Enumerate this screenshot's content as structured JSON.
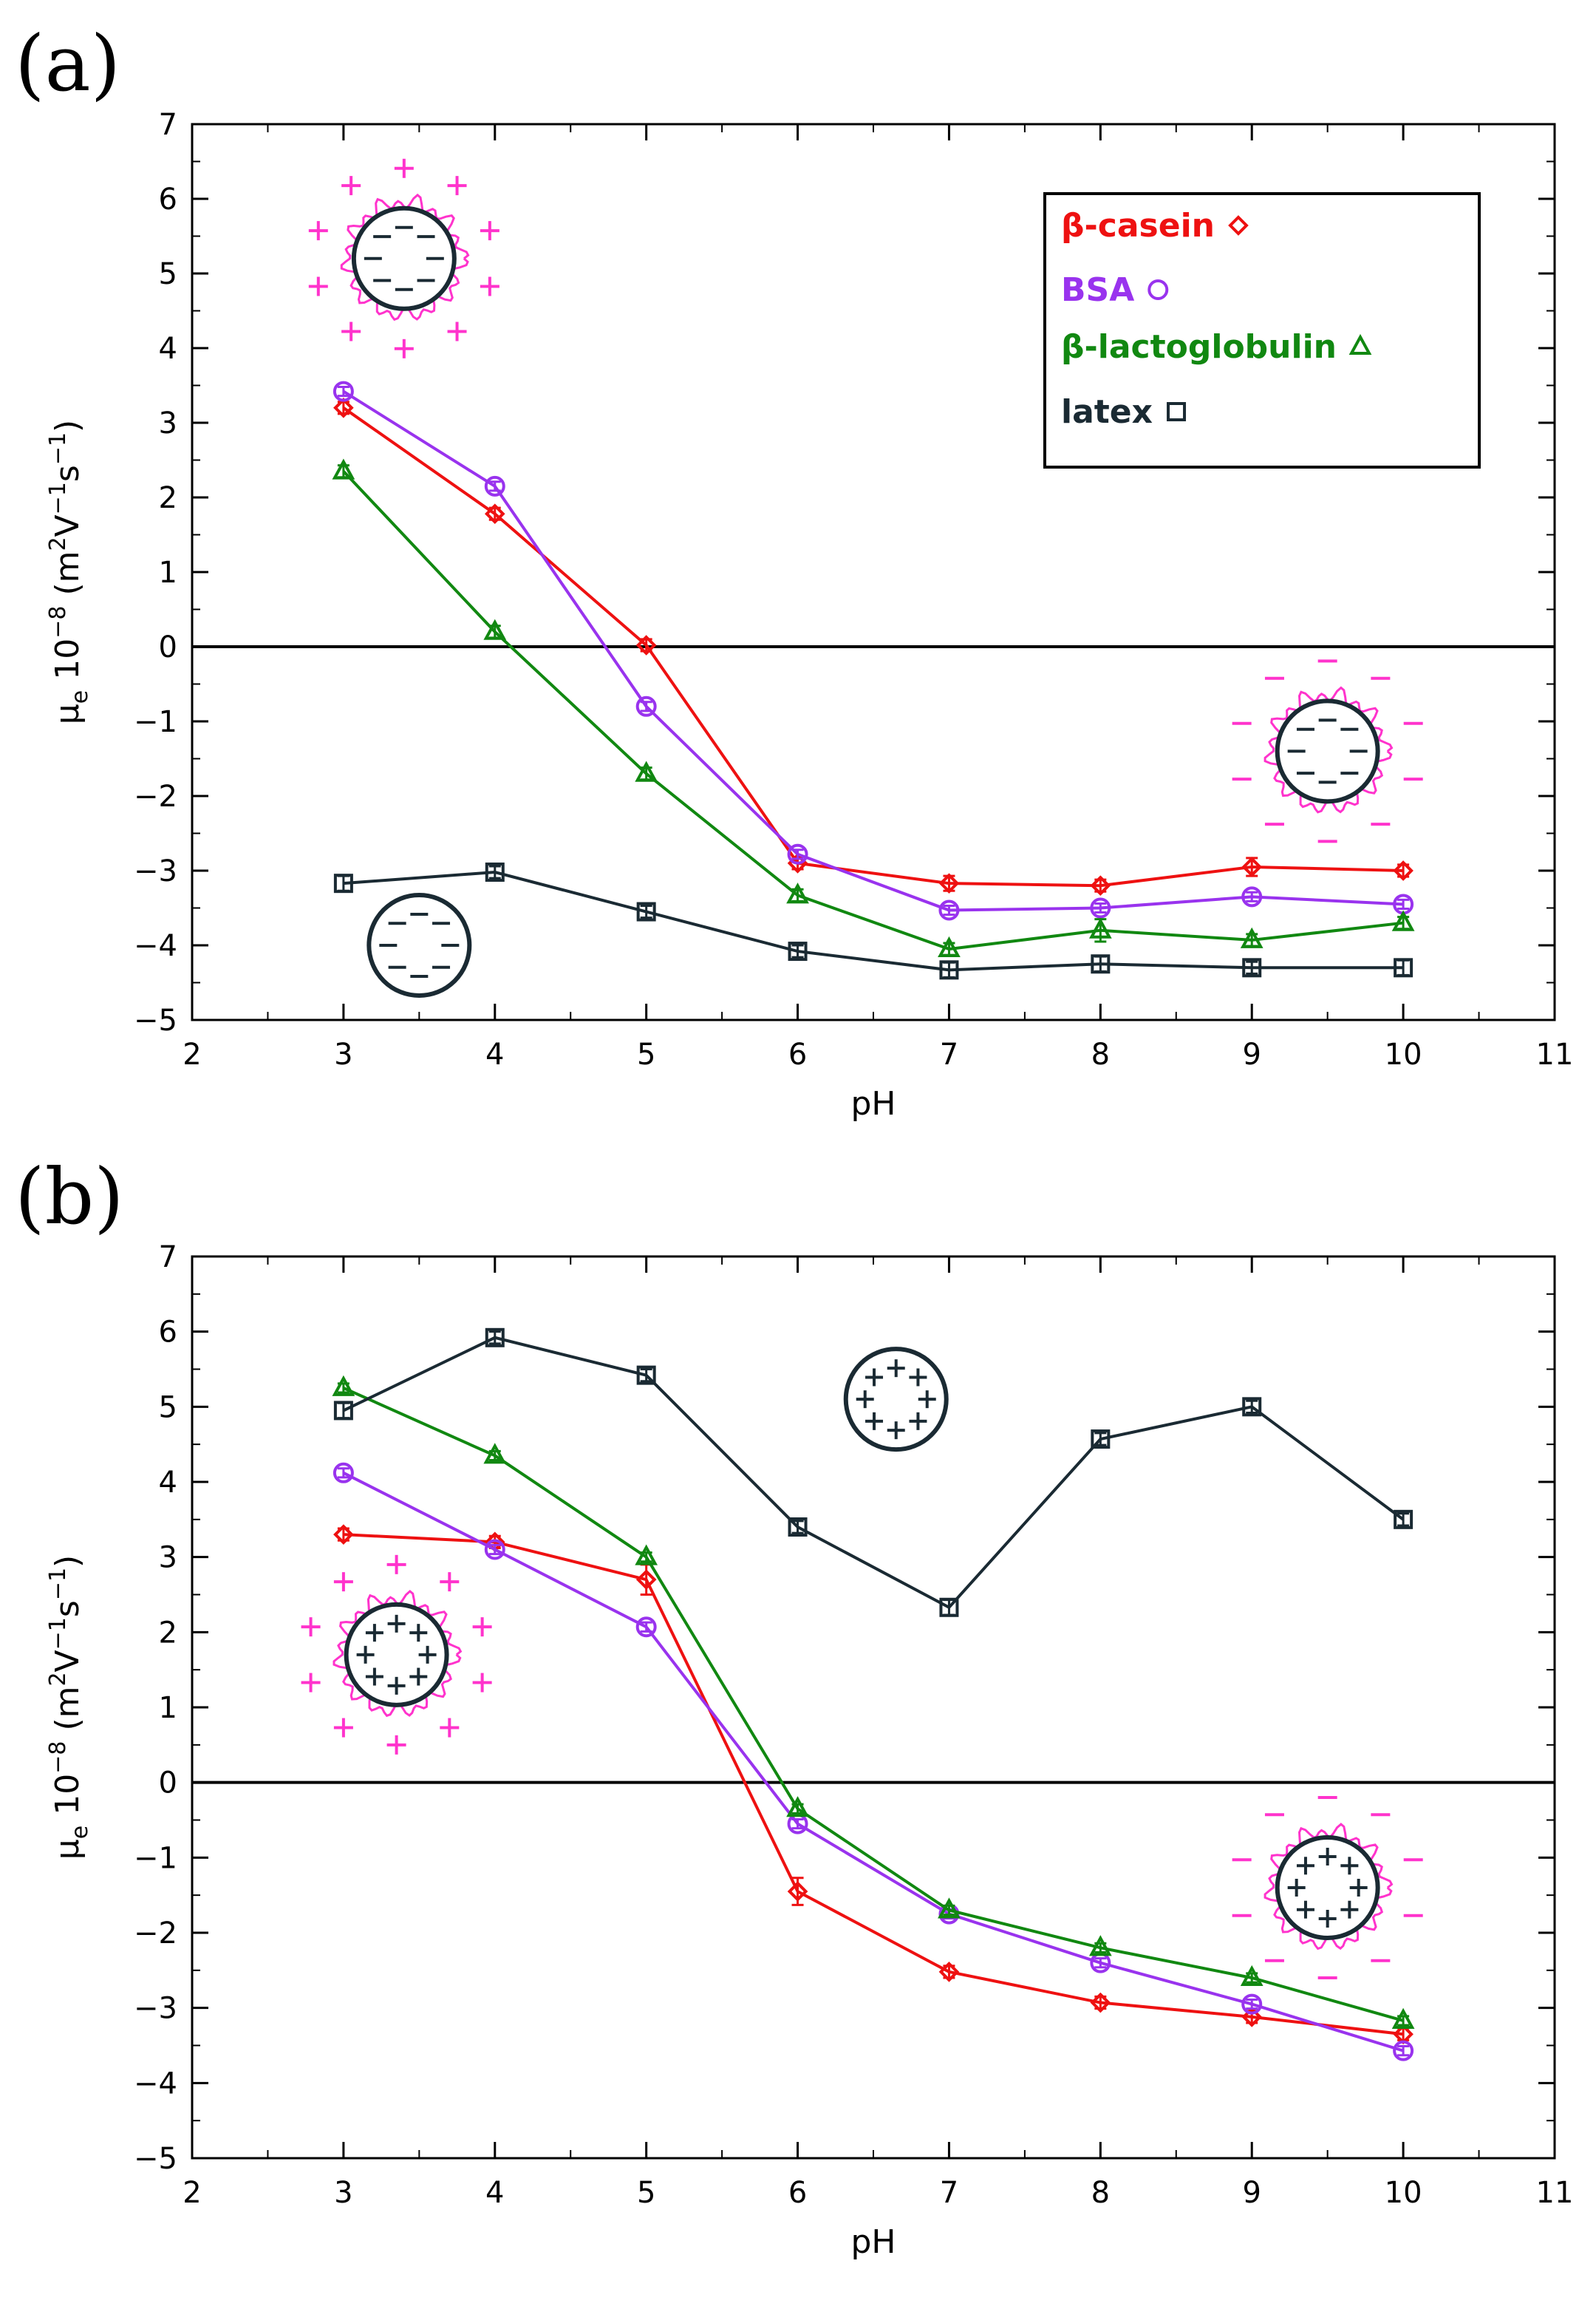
{
  "chart_data": [
    {
      "type": "line",
      "panel_label": "(a)",
      "title": "",
      "xlabel": "pH",
      "ylabel": "μₑ 10⁻⁸ (m²V⁻¹s⁻¹)",
      "ylabel_main": "μ",
      "ylabel_sub": "e",
      "ylabel_rest": " 10",
      "ylabel_exp": "−8",
      "ylabel_units": " (m",
      "ylabel_units_exp": "2",
      "ylabel_units_mid": "V",
      "ylabel_units_exp2": "−1",
      "ylabel_units_mid2": "s",
      "ylabel_units_exp3": "−1",
      "ylabel_units_end": ")",
      "xlim": [
        2,
        11
      ],
      "ylim": [
        -5,
        7
      ],
      "xticks": [
        "2",
        "3",
        "4",
        "5",
        "6",
        "7",
        "8",
        "9",
        "10",
        "11"
      ],
      "yticks": [
        "−5",
        "−4",
        "−3",
        "−2",
        "−1",
        "0",
        "1",
        "2",
        "3",
        "4",
        "5",
        "6",
        "7"
      ],
      "grid": false,
      "zero_line": true,
      "legend_position": "top-right",
      "x": [
        3,
        4,
        5,
        6,
        7,
        8,
        9,
        10
      ],
      "series": [
        {
          "name": "β-casein",
          "color": "#ee1111",
          "marker": "diamond",
          "values": [
            3.2,
            1.78,
            0.02,
            -2.9,
            -3.17,
            -3.2,
            -2.95,
            -3.0
          ]
        },
        {
          "name": "BSA",
          "color": "#9933ee",
          "marker": "circle",
          "values": [
            3.42,
            2.15,
            -0.8,
            -2.78,
            -3.53,
            -3.5,
            -3.35,
            -3.45
          ]
        },
        {
          "name": "β-lactoglobulin",
          "color": "#118811",
          "marker": "triangle",
          "values": [
            2.35,
            0.2,
            -1.7,
            -3.33,
            -4.05,
            -3.8,
            -3.93,
            -3.7
          ]
        },
        {
          "name": "latex",
          "color": "#1a2a33",
          "marker": "square",
          "values": [
            -3.17,
            -3.02,
            -3.55,
            -4.08,
            -4.33,
            -4.25,
            -4.3,
            -4.3
          ]
        }
      ],
      "insets": [
        {
          "name": "latex-particle-protein-coated",
          "at": [
            3.4,
            5.2
          ],
          "core": "negative",
          "corona": "positive"
        },
        {
          "name": "latex-particle-protein-coated-high-ph",
          "at": [
            9.5,
            -1.4
          ],
          "core": "negative",
          "corona": "negative"
        },
        {
          "name": "latex-particle-bare",
          "at": [
            3.5,
            -4.0
          ],
          "core": "negative",
          "corona": "none"
        }
      ]
    },
    {
      "type": "line",
      "panel_label": "(b)",
      "title": "",
      "xlabel": "pH",
      "xlim": [
        2,
        11
      ],
      "ylim": [
        -5,
        7
      ],
      "xticks": [
        "2",
        "3",
        "4",
        "5",
        "6",
        "7",
        "8",
        "9",
        "10",
        "11"
      ],
      "yticks": [
        "−5",
        "−4",
        "−3",
        "−2",
        "−1",
        "0",
        "1",
        "2",
        "3",
        "4",
        "5",
        "6",
        "7"
      ],
      "grid": false,
      "zero_line": true,
      "x": [
        3,
        4,
        5,
        6,
        7,
        8,
        9,
        10
      ],
      "series": [
        {
          "name": "β-casein",
          "color": "#ee1111",
          "marker": "diamond",
          "values": [
            3.3,
            3.2,
            2.7,
            -1.45,
            -2.52,
            -2.93,
            -3.12,
            -3.35
          ]
        },
        {
          "name": "BSA",
          "color": "#9933ee",
          "marker": "circle",
          "values": [
            4.12,
            3.1,
            2.07,
            -0.55,
            -1.75,
            -2.4,
            -2.95,
            -3.57
          ]
        },
        {
          "name": "β-lactoglobulin",
          "color": "#118811",
          "marker": "triangle",
          "values": [
            5.25,
            4.35,
            3.0,
            -0.35,
            -1.7,
            -2.2,
            -2.6,
            -3.17
          ]
        },
        {
          "name": "latex",
          "color": "#1a2a33",
          "marker": "square",
          "values": [
            4.95,
            5.92,
            5.42,
            3.4,
            2.33,
            4.57,
            5.0,
            3.5
          ]
        }
      ],
      "insets": [
        {
          "name": "latex-particle-bare-positive",
          "at": [
            6.65,
            5.1
          ],
          "core": "positive",
          "corona": "none"
        },
        {
          "name": "latex-particle-protein-coated-positive",
          "at": [
            3.35,
            1.7
          ],
          "core": "positive",
          "corona": "positive"
        },
        {
          "name": "latex-particle-protein-coated-positive-high-ph",
          "at": [
            9.5,
            -1.4
          ],
          "core": "positive",
          "corona": "negative"
        }
      ]
    }
  ],
  "colors": {
    "casein": "#ee1111",
    "bsa": "#9933ee",
    "lactoglobulin": "#118811",
    "latex": "#1a2a33",
    "protein_corona": "#ff33cc",
    "axis": "#000000"
  }
}
